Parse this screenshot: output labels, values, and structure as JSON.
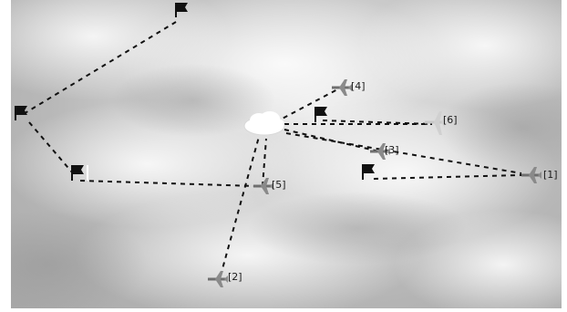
{
  "scene": {
    "unit_labels": [
      "[1]",
      "[2]",
      "[3]",
      "[4]",
      "[5]",
      "[6]"
    ]
  },
  "colors": {
    "route_line": "#111111",
    "aircraft": "#8a8a8a",
    "flag": "#111111",
    "cloud_marker": "#ffffff"
  },
  "icons": {
    "flag": "waypoint-flag-icon",
    "aircraft": "fighter-jet-icon",
    "cloud": "cloud-marker-icon"
  }
}
